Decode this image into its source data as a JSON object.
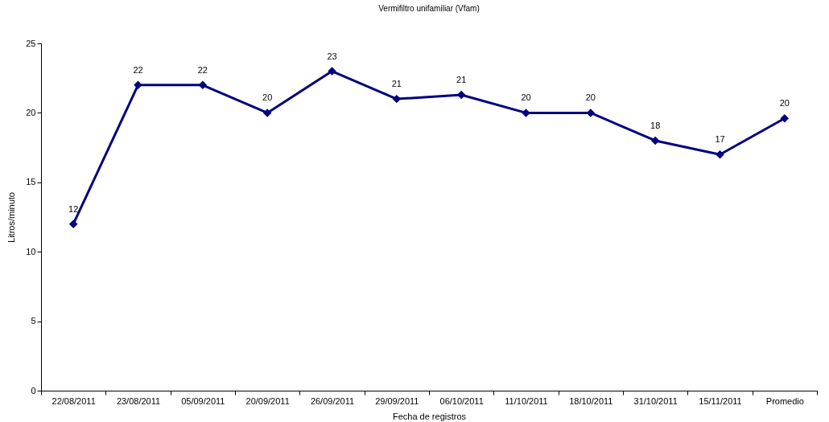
{
  "chart_data": {
    "type": "line",
    "title": "Vermifiltro unifamiliar (Vfam)",
    "xlabel": "Fecha de registros",
    "ylabel": "Litros/minuto",
    "categories": [
      "22/08/2011",
      "23/08/2011",
      "05/09/2011",
      "20/09/2011",
      "26/09/2011",
      "29/09/2011",
      "06/10/2011",
      "11/10/2011",
      "18/10/2011",
      "31/10/2011",
      "15/11/2011",
      "Promedio"
    ],
    "series": [
      {
        "color": "#000080",
        "values": [
          12,
          22,
          22,
          20,
          23,
          21,
          21.3,
          20,
          20,
          18,
          17,
          19.6
        ],
        "value_labels": [
          "12",
          "22",
          "22",
          "20",
          "23",
          "21",
          "21",
          "20",
          "20",
          "18",
          "17",
          "20"
        ]
      }
    ],
    "ylim": [
      0,
      25
    ],
    "yticks": [
      0,
      5,
      10,
      15,
      20,
      25
    ],
    "marker": "diamond",
    "line_style": "solid"
  }
}
